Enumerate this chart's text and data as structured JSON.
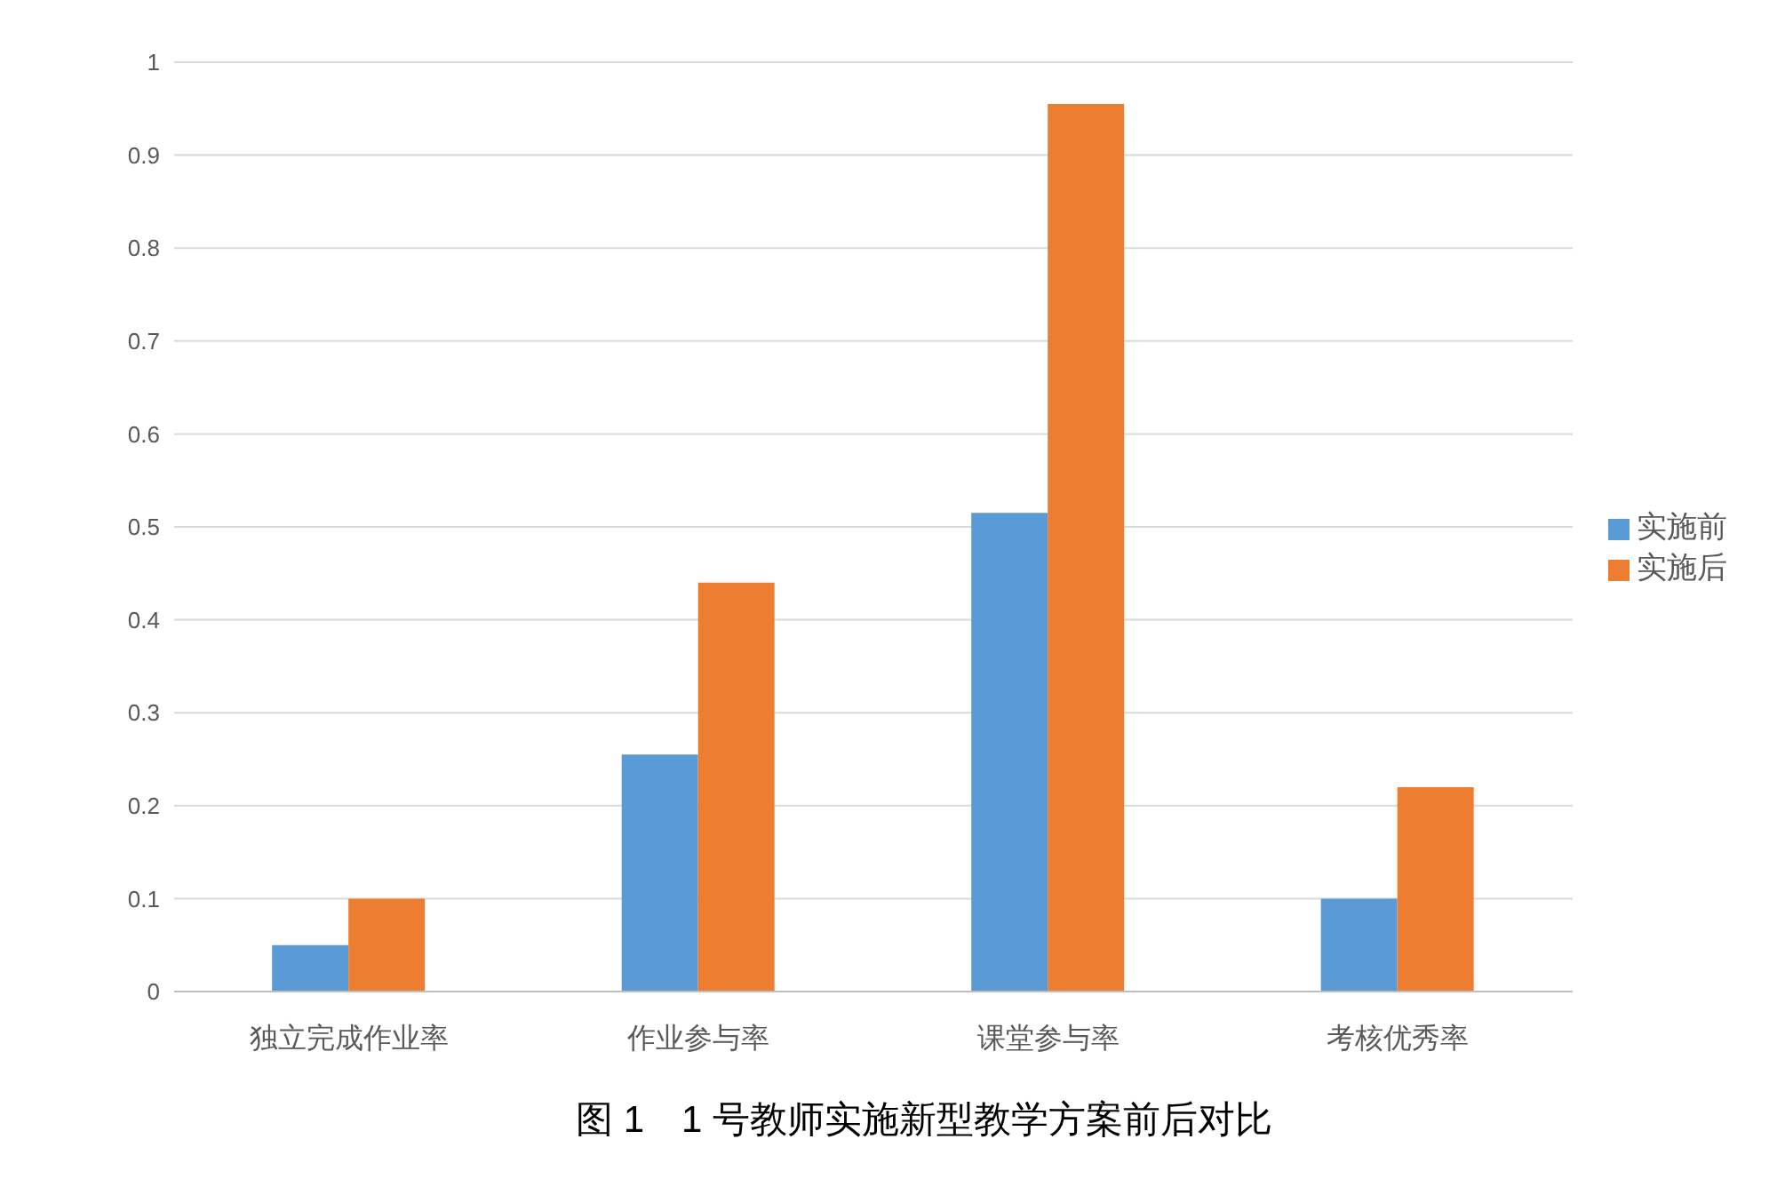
{
  "chart_data": {
    "type": "bar",
    "title": "图 1　1 号教师实施新型教学方案前后对比",
    "categories": [
      "独立完成作业率",
      "作业参与率",
      "课堂参与率",
      "考核优秀率"
    ],
    "series": [
      {
        "name": "实施前",
        "color": "#5b9bd5",
        "values": [
          0.05,
          0.255,
          0.515,
          0.1
        ]
      },
      {
        "name": "实施后",
        "color": "#ed7d31",
        "values": [
          0.1,
          0.44,
          0.955,
          0.22
        ]
      }
    ],
    "ylim": [
      0,
      1
    ],
    "yticks": [
      0,
      0.1,
      0.2,
      0.3,
      0.4,
      0.5,
      0.6,
      0.7,
      0.8,
      0.9,
      1
    ],
    "grid": "y",
    "legend": "right"
  }
}
